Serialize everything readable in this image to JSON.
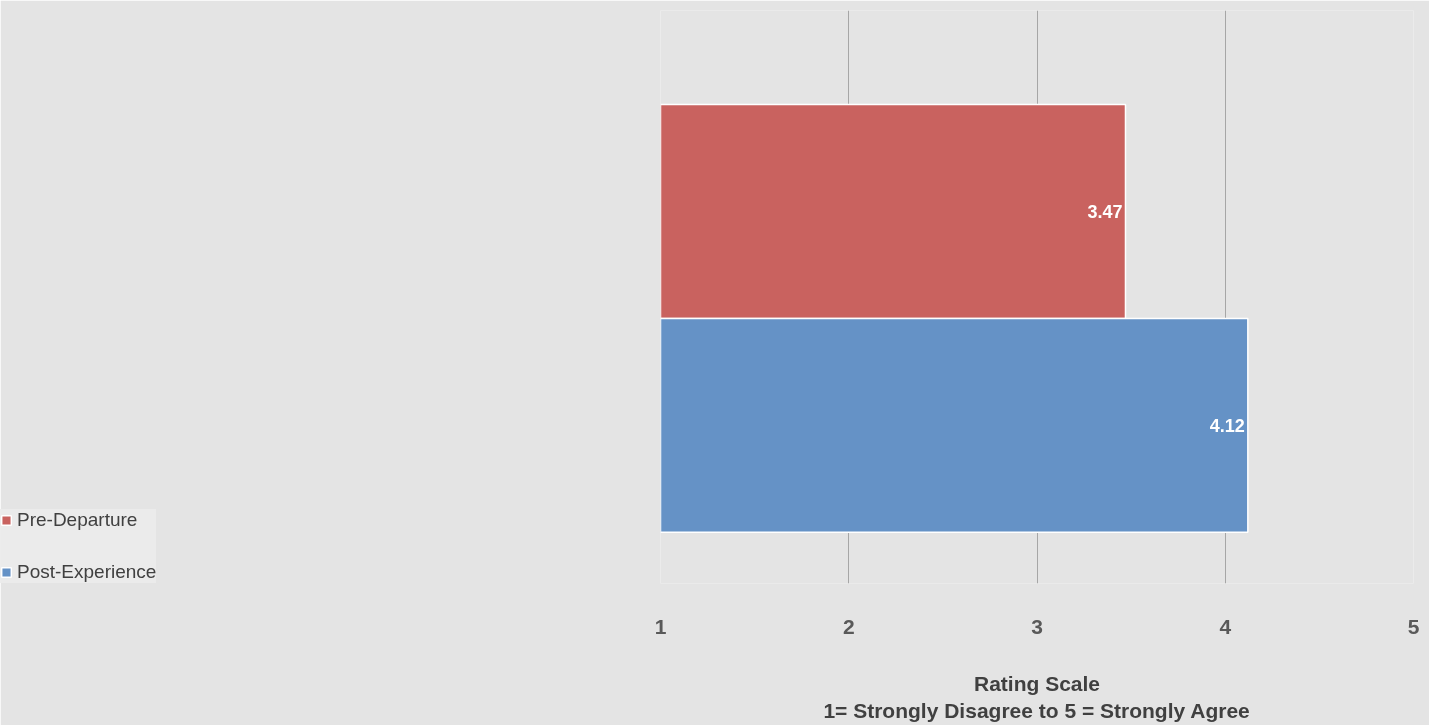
{
  "chart_data": {
    "type": "bar",
    "orientation": "horizontal",
    "categories": [
      null
    ],
    "series": [
      {
        "name": "Pre-Departure",
        "color": "#c9625f",
        "values": [
          3.47
        ]
      },
      {
        "name": "Post-Experience",
        "color": "#6592c6",
        "values": [
          4.12
        ]
      }
    ],
    "xlim": [
      1,
      5
    ],
    "xticks": [
      1,
      2,
      3,
      4,
      5
    ],
    "xlabel": "Rating Scale\n1= Strongly Disagree to 5 = Strongly Agree",
    "grid": "x",
    "legend": "left",
    "data_labels": true
  }
}
